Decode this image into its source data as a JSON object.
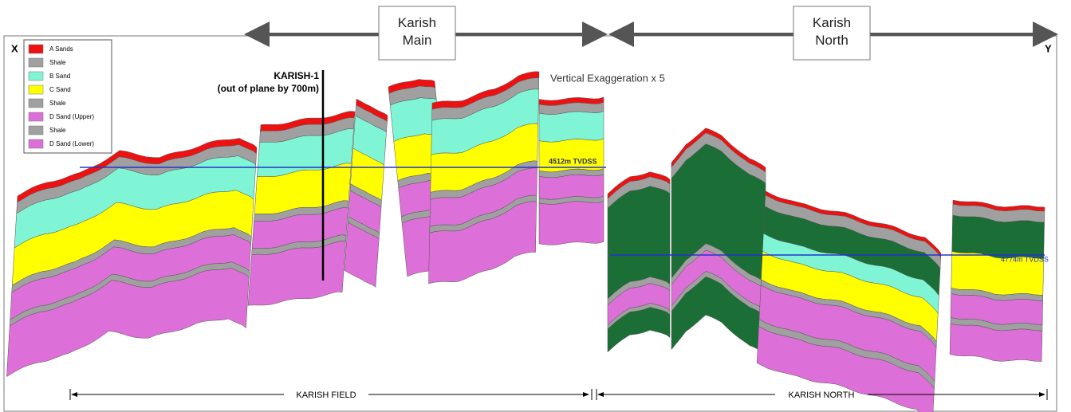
{
  "title_boxes": {
    "main": "Karish\nMain",
    "north": "Karish\nNorth"
  },
  "end_labels": {
    "left": "X",
    "right": "Y"
  },
  "well": {
    "name": "KARISH-1",
    "note": "(out of plane by 700m)"
  },
  "exaggeration": "Vertical Exaggeration x 5",
  "depth_lines": {
    "left": "4512m TVDSS",
    "right": "4774m TVDSS"
  },
  "legend": [
    "A Sands",
    "Shale",
    "B Sand",
    "C Sand",
    "Shale",
    "D Sand (Upper)",
    "Shale",
    "D Sand (Lower)"
  ],
  "fields": {
    "left": "KARISH FIELD",
    "right": "KARISH NORTH"
  }
}
